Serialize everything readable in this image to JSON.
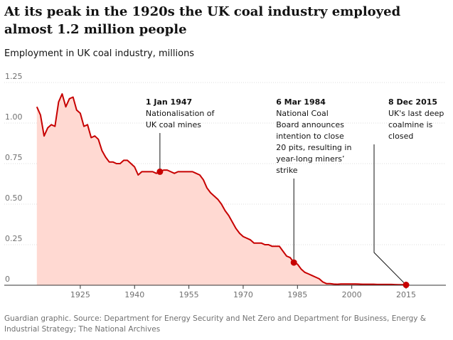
{
  "headline": "At its peak in the 1920s the UK coal industry employed almost 1.2 million people",
  "subtitle": "Employment in UK coal industry, millions",
  "source": "Guardian graphic. Source: Department for Energy Security and Net Zero and Department for Business, Energy & Industrial Strategy; The National Archives",
  "colors": {
    "line": "#c70000",
    "area": "#ffd9d2",
    "grid": "#dcdcdc",
    "axis": "#333333",
    "text": "#707070"
  },
  "chart_data": {
    "type": "area",
    "title": "At its peak in the 1920s the UK coal industry employed almost 1.2 million people",
    "ylabel": "Employment in UK coal industry, millions",
    "xlim": [
      1904,
      2026
    ],
    "ylim": [
      0,
      1.25
    ],
    "yticks": [
      {
        "value": 0,
        "label": "0"
      },
      {
        "value": 0.25,
        "label": "0.25"
      },
      {
        "value": 0.5,
        "label": "0.50"
      },
      {
        "value": 0.75,
        "label": "0.75"
      },
      {
        "value": 1.0,
        "label": "1.00"
      },
      {
        "value": 1.25,
        "label": "1.25"
      }
    ],
    "xticks": [
      1925,
      1940,
      1955,
      1970,
      1985,
      2000,
      2015
    ],
    "grid": true,
    "series": [
      {
        "x": [
          1913,
          1914,
          1915,
          1916,
          1917,
          1918,
          1919,
          1920,
          1921,
          1922,
          1923,
          1924,
          1925,
          1926,
          1927,
          1928,
          1929,
          1930,
          1931,
          1932,
          1933,
          1934,
          1935,
          1936,
          1937,
          1938,
          1939,
          1940,
          1941,
          1942,
          1943,
          1944,
          1945,
          1946,
          1947,
          1948,
          1949,
          1950,
          1951,
          1952,
          1953,
          1954,
          1955,
          1956,
          1957,
          1958,
          1959,
          1960,
          1961,
          1962,
          1963,
          1964,
          1965,
          1966,
          1967,
          1968,
          1969,
          1970,
          1971,
          1972,
          1973,
          1974,
          1975,
          1976,
          1977,
          1978,
          1979,
          1980,
          1981,
          1982,
          1983,
          1984,
          1985,
          1986,
          1987,
          1988,
          1989,
          1990,
          1991,
          1992,
          1993,
          1994,
          1995,
          1996,
          1997,
          1998,
          1999,
          2000,
          2001,
          2002,
          2003,
          2004,
          2005,
          2006,
          2007,
          2008,
          2009,
          2010,
          2011,
          2012,
          2013,
          2014,
          2015
        ],
        "values": [
          1.1,
          1.05,
          0.92,
          0.97,
          0.99,
          0.98,
          1.13,
          1.18,
          1.1,
          1.15,
          1.16,
          1.08,
          1.06,
          0.98,
          0.99,
          0.91,
          0.92,
          0.9,
          0.83,
          0.79,
          0.76,
          0.76,
          0.75,
          0.75,
          0.77,
          0.77,
          0.75,
          0.73,
          0.68,
          0.7,
          0.7,
          0.7,
          0.7,
          0.69,
          0.7,
          0.71,
          0.71,
          0.7,
          0.69,
          0.7,
          0.7,
          0.7,
          0.7,
          0.7,
          0.69,
          0.68,
          0.65,
          0.6,
          0.57,
          0.55,
          0.53,
          0.5,
          0.46,
          0.43,
          0.39,
          0.35,
          0.32,
          0.3,
          0.29,
          0.28,
          0.26,
          0.26,
          0.26,
          0.25,
          0.25,
          0.24,
          0.24,
          0.24,
          0.21,
          0.18,
          0.17,
          0.14,
          0.13,
          0.1,
          0.08,
          0.07,
          0.06,
          0.05,
          0.04,
          0.02,
          0.01,
          0.01,
          0.007,
          0.006,
          0.008,
          0.008,
          0.008,
          0.008,
          0.008,
          0.007,
          0.006,
          0.006,
          0.006,
          0.006,
          0.005,
          0.005,
          0.005,
          0.005,
          0.005,
          0.004,
          0.003,
          0.003,
          0.002
        ]
      }
    ],
    "annotations": [
      {
        "x": 1947,
        "y": 0.7,
        "title": "1 Jan 1947",
        "lines": [
          "Nationalisation of",
          "UK coal mines"
        ]
      },
      {
        "x": 1984,
        "y": 0.14,
        "title": "6 Mar 1984",
        "lines": [
          "National Coal",
          "Board announces",
          "intention to close",
          "20 pits, resulting in",
          "year-long miners’",
          "strike"
        ]
      },
      {
        "x": 2015,
        "y": 0.002,
        "title": "8 Dec 2015",
        "lines": [
          "UK's last deep",
          "coalmine is",
          "closed"
        ]
      }
    ]
  }
}
